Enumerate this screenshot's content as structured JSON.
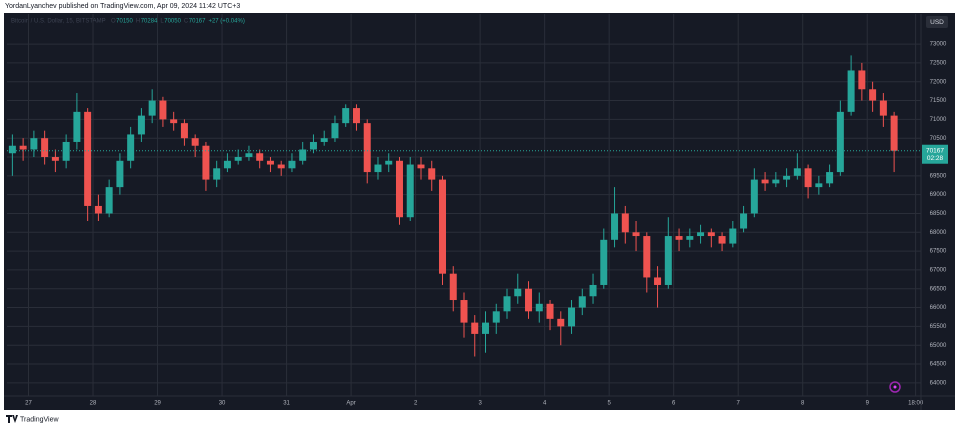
{
  "header": {
    "publisher": "YordanLyanchev published on TradingView.com, Apr 09, 2024 11:42 UTC+3"
  },
  "footer": {
    "brand": "TradingView"
  },
  "chart_data": {
    "type": "candlestick",
    "legend": {
      "symbol": "Bitcoin / U.S. Dollar, 15, BITSTAMP",
      "items": [
        {
          "label": "O",
          "value": 70150
        },
        {
          "label": "H",
          "value": 70284
        },
        {
          "label": "L",
          "value": 70050
        },
        {
          "label": "C",
          "value": 70167
        }
      ],
      "change": "+27 (+0.04%)"
    },
    "currency": "USD",
    "last_price": 70167,
    "countdown": "02:28",
    "up_color": "#26a69a",
    "down_color": "#ef5350",
    "grid": true,
    "open": [
      70100,
      70300,
      70200,
      70500,
      70000,
      69900,
      70400,
      71200,
      68700,
      68500,
      69200,
      69900,
      70600,
      71100,
      71500,
      71000,
      70900,
      70500,
      70300,
      69400,
      69700,
      69900,
      70000,
      70100,
      69900,
      69800,
      69700,
      69900,
      70200,
      70400,
      70500,
      70900,
      71300,
      70900,
      69600,
      69800,
      69900,
      68400,
      69800,
      69700,
      69400,
      66900,
      66200,
      65600,
      65300,
      65600,
      65900,
      66300,
      66500,
      65900,
      66100,
      65700,
      65500,
      66000,
      66300,
      66600,
      67800,
      68500,
      68000,
      67900,
      66800,
      66600,
      67900,
      67800,
      67900,
      68000,
      67900,
      67700,
      68100,
      68500,
      69400,
      69300,
      69400,
      69500,
      69700,
      69200,
      69300,
      69600,
      71200,
      72300,
      71800,
      71500,
      71100
    ],
    "high": [
      70600,
      70500,
      70700,
      70700,
      70200,
      70600,
      71700,
      71300,
      69000,
      69400,
      70100,
      70800,
      71300,
      71800,
      71600,
      71200,
      71000,
      70600,
      70400,
      69900,
      70100,
      70200,
      70300,
      70200,
      70000,
      69900,
      70100,
      70400,
      70600,
      70700,
      71100,
      71400,
      71400,
      71000,
      70000,
      70100,
      70000,
      70000,
      70000,
      69900,
      69500,
      67100,
      66400,
      65800,
      65900,
      66100,
      66500,
      66900,
      66700,
      66400,
      66200,
      65900,
      66200,
      66500,
      66900,
      68100,
      69200,
      68700,
      68300,
      68000,
      67100,
      68400,
      68100,
      68100,
      68200,
      68100,
      68000,
      68300,
      68700,
      69700,
      69600,
      69600,
      69700,
      70100,
      69800,
      69500,
      69800,
      71500,
      72700,
      72500,
      72000,
      71700,
      71200
    ],
    "low": [
      69500,
      69900,
      70000,
      69800,
      69600,
      69700,
      70200,
      68300,
      68300,
      68400,
      69000,
      69700,
      70400,
      70900,
      70800,
      70700,
      70300,
      70000,
      69100,
      69200,
      69600,
      69800,
      69900,
      69700,
      69600,
      69500,
      69600,
      69800,
      70100,
      70300,
      70400,
      70800,
      70700,
      69300,
      69400,
      69600,
      68200,
      68300,
      69400,
      69100,
      66600,
      65900,
      65200,
      64700,
      64800,
      65300,
      65700,
      66100,
      65700,
      65600,
      65400,
      65000,
      65300,
      65800,
      66100,
      66500,
      67600,
      67700,
      67500,
      66400,
      66000,
      66500,
      67500,
      67600,
      67700,
      67600,
      67500,
      67600,
      68000,
      68400,
      69100,
      69200,
      69200,
      69400,
      68900,
      69000,
      69200,
      69500,
      71100,
      71500,
      71200,
      70800,
      69600
    ],
    "close": [
      70300,
      70200,
      70500,
      70000,
      69900,
      70400,
      71200,
      68700,
      68500,
      69200,
      69900,
      70600,
      71100,
      71500,
      71000,
      70900,
      70500,
      70300,
      69400,
      69700,
      69900,
      70000,
      70100,
      69900,
      69800,
      69700,
      69900,
      70200,
      70400,
      70500,
      70900,
      71300,
      70900,
      69600,
      69800,
      69900,
      68400,
      69800,
      69700,
      69400,
      66900,
      66200,
      65600,
      65300,
      65600,
      65900,
      66300,
      66500,
      65900,
      66100,
      65700,
      65500,
      66000,
      66300,
      66600,
      67800,
      68500,
      68000,
      67900,
      66800,
      66600,
      67900,
      67800,
      67900,
      68000,
      67900,
      67700,
      68100,
      68500,
      69400,
      69300,
      69400,
      69500,
      69700,
      69200,
      69300,
      69600,
      71200,
      72300,
      71800,
      71500,
      71100,
      70167
    ],
    "xlim": [
      0,
      85
    ],
    "xticks": [
      {
        "value": 2,
        "label": "27"
      },
      {
        "value": 8,
        "label": "28"
      },
      {
        "value": 14,
        "label": "29"
      },
      {
        "value": 20,
        "label": "30"
      },
      {
        "value": 26,
        "label": "31"
      },
      {
        "value": 32,
        "label": "Apr"
      },
      {
        "value": 38,
        "label": "2"
      },
      {
        "value": 44,
        "label": "3"
      },
      {
        "value": 50,
        "label": "4"
      },
      {
        "value": 56,
        "label": "5"
      },
      {
        "value": 62,
        "label": "6"
      },
      {
        "value": 68,
        "label": "7"
      },
      {
        "value": 74,
        "label": "8"
      },
      {
        "value": 80,
        "label": "9"
      },
      {
        "value": 84.5,
        "label": "18:00"
      }
    ],
    "ylim": [
      63650,
      73800
    ],
    "yticks": [
      64000,
      64500,
      65000,
      65500,
      66000,
      66500,
      67000,
      67500,
      68000,
      68500,
      69000,
      69500,
      70000,
      70500,
      71000,
      71500,
      72000,
      72500,
      73000
    ]
  }
}
